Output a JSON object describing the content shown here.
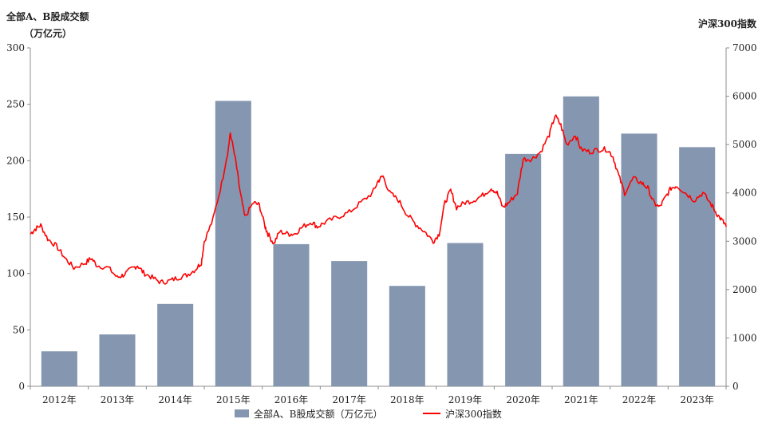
{
  "chart_data": {
    "type": "bar+line",
    "left_axis_title_line1": "全部A、B股成交额",
    "left_axis_title_line2": "（万亿元）",
    "right_axis_title": "沪深300指数",
    "categories": [
      "2012年",
      "2013年",
      "2014年",
      "2015年",
      "2016年",
      "2017年",
      "2018年",
      "2019年",
      "2020年",
      "2021年",
      "2022年",
      "2023年"
    ],
    "y_left_ticks": [
      0,
      50,
      100,
      150,
      200,
      250,
      300
    ],
    "y_right_ticks": [
      0,
      1000,
      2000,
      3000,
      4000,
      5000,
      6000,
      7000
    ],
    "ylim_left": [
      0,
      300
    ],
    "ylim_right": [
      0,
      7000
    ],
    "grid": false,
    "legend_position": "bottom",
    "series": [
      {
        "name": "全部A、B股成交额（万亿元）",
        "type": "bar",
        "axis": "left",
        "color": "#8496b0",
        "values": [
          31,
          46,
          73,
          253,
          126,
          111,
          89,
          127,
          206,
          257,
          224,
          212
        ]
      },
      {
        "name": "沪深300指数",
        "type": "line",
        "axis": "right",
        "color": "#ff0000",
        "x_start": 2012.0,
        "x_end": 2024.0,
        "anchors": [
          [
            2012.0,
            3150
          ],
          [
            2012.08,
            3250
          ],
          [
            2012.18,
            3330
          ],
          [
            2012.3,
            3050
          ],
          [
            2012.45,
            2900
          ],
          [
            2012.6,
            2650
          ],
          [
            2012.75,
            2450
          ],
          [
            2012.95,
            2550
          ],
          [
            2013.05,
            2650
          ],
          [
            2013.15,
            2500
          ],
          [
            2013.35,
            2450
          ],
          [
            2013.5,
            2250
          ],
          [
            2013.6,
            2300
          ],
          [
            2013.75,
            2430
          ],
          [
            2013.85,
            2500
          ],
          [
            2013.95,
            2350
          ],
          [
            2014.1,
            2250
          ],
          [
            2014.25,
            2150
          ],
          [
            2014.4,
            2180
          ],
          [
            2014.55,
            2250
          ],
          [
            2014.7,
            2300
          ],
          [
            2014.85,
            2420
          ],
          [
            2014.95,
            2560
          ],
          [
            2015.0,
            3000
          ],
          [
            2015.15,
            3450
          ],
          [
            2015.3,
            4200
          ],
          [
            2015.42,
            4950
          ],
          [
            2015.45,
            5250
          ],
          [
            2015.55,
            4600
          ],
          [
            2015.62,
            4000
          ],
          [
            2015.7,
            3500
          ],
          [
            2015.85,
            3800
          ],
          [
            2015.95,
            3750
          ],
          [
            2016.05,
            3300
          ],
          [
            2016.1,
            3150
          ],
          [
            2016.2,
            2950
          ],
          [
            2016.3,
            3200
          ],
          [
            2016.45,
            3150
          ],
          [
            2016.55,
            3150
          ],
          [
            2016.7,
            3300
          ],
          [
            2016.85,
            3400
          ],
          [
            2016.95,
            3300
          ],
          [
            2017.1,
            3400
          ],
          [
            2017.3,
            3500
          ],
          [
            2017.5,
            3600
          ],
          [
            2017.7,
            3800
          ],
          [
            2017.9,
            4000
          ],
          [
            2018.0,
            4250
          ],
          [
            2018.08,
            4350
          ],
          [
            2018.2,
            4000
          ],
          [
            2018.35,
            3850
          ],
          [
            2018.5,
            3550
          ],
          [
            2018.65,
            3350
          ],
          [
            2018.8,
            3200
          ],
          [
            2018.95,
            3000
          ],
          [
            2019.05,
            3150
          ],
          [
            2019.15,
            3800
          ],
          [
            2019.25,
            4050
          ],
          [
            2019.35,
            3700
          ],
          [
            2019.5,
            3800
          ],
          [
            2019.65,
            3850
          ],
          [
            2019.8,
            3950
          ],
          [
            2019.95,
            4100
          ],
          [
            2020.05,
            4000
          ],
          [
            2020.15,
            3700
          ],
          [
            2020.25,
            3800
          ],
          [
            2020.4,
            4000
          ],
          [
            2020.5,
            4700
          ],
          [
            2020.65,
            4700
          ],
          [
            2020.8,
            4850
          ],
          [
            2020.95,
            5200
          ],
          [
            2021.05,
            5600
          ],
          [
            2021.15,
            5400
          ],
          [
            2021.25,
            5000
          ],
          [
            2021.4,
            5200
          ],
          [
            2021.5,
            4900
          ],
          [
            2021.65,
            4850
          ],
          [
            2021.8,
            4900
          ],
          [
            2021.95,
            4900
          ],
          [
            2022.05,
            4750
          ],
          [
            2022.15,
            4350
          ],
          [
            2022.25,
            4000
          ],
          [
            2022.4,
            4300
          ],
          [
            2022.55,
            4200
          ],
          [
            2022.65,
            4100
          ],
          [
            2022.75,
            3800
          ],
          [
            2022.85,
            3700
          ],
          [
            2022.95,
            3900
          ],
          [
            2023.05,
            4100
          ],
          [
            2023.15,
            4150
          ],
          [
            2023.3,
            4000
          ],
          [
            2023.45,
            3850
          ],
          [
            2023.6,
            4000
          ],
          [
            2023.75,
            3750
          ],
          [
            2023.85,
            3550
          ],
          [
            2023.95,
            3400
          ],
          [
            2024.0,
            3300
          ]
        ]
      }
    ]
  }
}
